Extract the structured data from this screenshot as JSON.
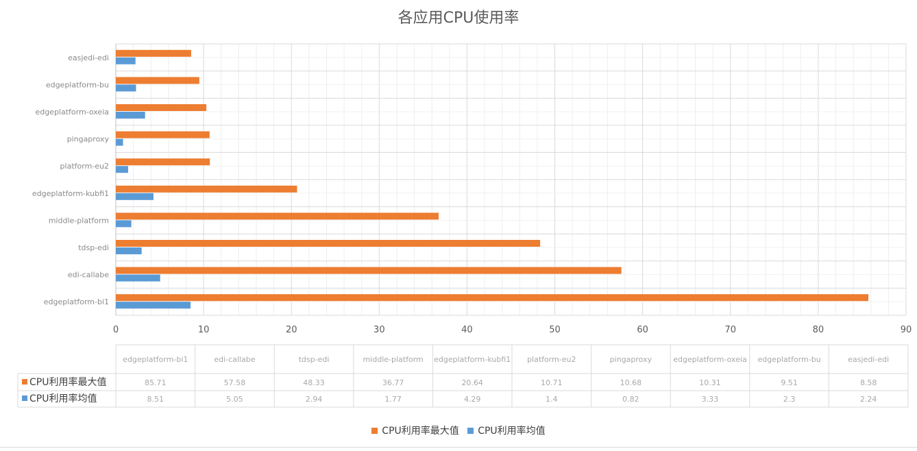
{
  "chart_data": {
    "type": "bar",
    "orientation": "horizontal",
    "title": "各应用CPU使用率",
    "categories": [
      "edgeplatform-bi1",
      "edi-callabe",
      "tdsp-edi",
      "middle-platform",
      "edgeplatform-kubfi1",
      "platform-eu2",
      "pingaproxy",
      "edgeplatform-oxeia",
      "edgeplatform-bu",
      "easjedi-edi"
    ],
    "series": [
      {
        "name": "CPU利用率最大值",
        "color": "#ED7D31",
        "values": [
          85.71,
          57.58,
          48.33,
          36.77,
          20.64,
          10.71,
          10.68,
          10.31,
          9.51,
          8.58
        ]
      },
      {
        "name": "CPU利用率均值",
        "color": "#5B9BD5",
        "values": [
          8.51,
          5.05,
          2.94,
          1.77,
          4.29,
          1.4,
          0.82,
          3.33,
          2.3,
          2.24
        ]
      }
    ],
    "xlim": [
      0,
      90
    ],
    "x_ticks": [
      "0",
      "10",
      "20",
      "30",
      "40",
      "50",
      "60",
      "70",
      "80",
      "90"
    ],
    "grid": true,
    "legend": "bottom",
    "data_table": {
      "headers": [
        "edgeplatform-bi1",
        "edi-callabe",
        "tdsp-edi",
        "middle-platform",
        "edgeplatform-kubfi1",
        "platform-eu2",
        "pingaproxy",
        "edgeplatform-oxeia",
        "edgeplatform-bu",
        "easjedi-edi"
      ],
      "rows": [
        {
          "label": "CPU利用率最大值",
          "values": [
            "85.71",
            "57.58",
            "48.33",
            "36.77",
            "20.64",
            "10.71",
            "10.68",
            "10.31",
            "9.51",
            "8.58"
          ]
        },
        {
          "label": "CPU利用率均值",
          "values": [
            "8.51",
            "5.05",
            "2.94",
            "1.77",
            "4.29",
            "1.4",
            "0.82",
            "3.33",
            "2.3",
            "2.24"
          ]
        }
      ]
    }
  }
}
